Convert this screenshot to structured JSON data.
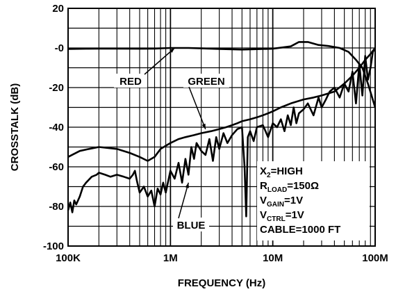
{
  "chart_data": {
    "type": "line",
    "xlabel": "FREQUENCY (Hz)",
    "ylabel": "CROSSTALK (dB)",
    "x_scale": "log",
    "xlim": [
      100000,
      100000000
    ],
    "ylim": [
      -100,
      20
    ],
    "grid": true,
    "x_tick_labels": [
      {
        "value": 100000,
        "label": "100K"
      },
      {
        "value": 1000000,
        "label": "1M"
      },
      {
        "value": 10000000,
        "label": "10M"
      },
      {
        "value": 100000000,
        "label": "100M"
      }
    ],
    "y_tick_labels": [
      {
        "value": 20,
        "label": "20"
      },
      {
        "value": 0,
        "label": "-0"
      },
      {
        "value": -20,
        "label": "-20"
      },
      {
        "value": -40,
        "label": "-40"
      },
      {
        "value": -60,
        "label": "-60"
      },
      {
        "value": -80,
        "label": "-80"
      },
      {
        "value": -100,
        "label": "-100"
      }
    ],
    "series": [
      {
        "name": "RED",
        "x": [
          100000,
          150000,
          200000,
          300000,
          500000,
          700000,
          1000000,
          1500000,
          2000000,
          3000000,
          5000000,
          7000000,
          10000000,
          15000000,
          18000000,
          22000000,
          28000000,
          35000000,
          45000000,
          55000000,
          65000000,
          75000000,
          85000000,
          100000000
        ],
        "y": [
          -0.5,
          -0.4,
          -0.3,
          -0.3,
          -0.4,
          -0.3,
          0,
          0,
          -0.2,
          -0.5,
          -0.8,
          -0.6,
          -0.4,
          0.8,
          3,
          3,
          1.5,
          1,
          0,
          -2,
          -6,
          -10,
          -18,
          -30
        ]
      },
      {
        "name": "GREEN",
        "x": [
          100000,
          130000,
          160000,
          200000,
          300000,
          400000,
          500000,
          600000,
          700000,
          800000,
          1000000,
          1200000,
          1400000,
          1700000,
          2000000,
          2500000,
          3000000,
          3500000,
          4000000,
          4500000,
          5000000,
          6000000,
          7000000,
          8000000,
          9000000,
          10000000,
          12000000,
          15000000,
          20000000,
          25000000,
          30000000,
          40000000,
          50000000,
          60000000,
          70000000,
          80000000,
          90000000,
          100000000
        ],
        "y": [
          -55,
          -52,
          -51,
          -50,
          -51,
          -53,
          -55,
          -57,
          -55,
          -51,
          -48,
          -46,
          -45,
          -44,
          -43,
          -42,
          -41,
          -40,
          -39,
          -38,
          -37,
          -36,
          -35,
          -34,
          -33,
          -32,
          -30,
          -28,
          -26,
          -25,
          -24,
          -22,
          -18,
          -14,
          -10,
          -6,
          -3,
          0
        ]
      },
      {
        "name": "BLUE",
        "x": [
          100000,
          105000,
          110000,
          115000,
          120000,
          130000,
          140000,
          150000,
          170000,
          190000,
          200000,
          230000,
          260000,
          300000,
          350000,
          400000,
          430000,
          450000,
          470000,
          500000,
          550000,
          600000,
          650000,
          700000,
          750000,
          800000,
          850000,
          900000,
          1000000,
          1100000,
          1200000,
          1300000,
          1400000,
          1500000,
          1600000,
          1700000,
          1800000,
          2000000,
          2200000,
          2400000,
          2600000,
          2800000,
          3000000,
          3300000,
          3600000,
          4000000,
          4500000,
          5000000,
          5300000,
          5500000,
          5700000,
          6000000,
          6500000,
          7000000,
          8000000,
          9000000,
          10000000,
          11000000,
          12000000,
          13000000,
          14000000,
          15000000,
          16000000,
          17000000,
          18000000,
          20000000,
          22000000,
          25000000,
          28000000,
          30000000,
          33000000,
          36000000,
          40000000,
          45000000,
          50000000,
          55000000,
          60000000,
          65000000,
          70000000,
          75000000,
          80000000,
          85000000,
          90000000,
          95000000,
          100000000
        ],
        "y": [
          -82,
          -78,
          -83,
          -77,
          -79,
          -75,
          -70,
          -68,
          -65,
          -64,
          -63,
          -64,
          -65,
          -64,
          -65,
          -66,
          -64,
          -62,
          -67,
          -73,
          -70,
          -75,
          -72,
          -80,
          -71,
          -74,
          -68,
          -73,
          -62,
          -66,
          -58,
          -68,
          -56,
          -64,
          -50,
          -56,
          -48,
          -52,
          -54,
          -46,
          -57,
          -45,
          -51,
          -43,
          -48,
          -44,
          -41,
          -40,
          -60,
          -85,
          -45,
          -42,
          -47,
          -40,
          -39,
          -45,
          -38,
          -40,
          -36,
          -42,
          -34,
          -39,
          -30,
          -38,
          -33,
          -31,
          -28,
          -34,
          -25,
          -30,
          -26,
          -22,
          -20,
          -25,
          -18,
          -22,
          -12,
          -28,
          -8,
          -24,
          -4,
          -16,
          -10,
          -2,
          0
        ]
      }
    ],
    "annotations": [
      {
        "text": "RED",
        "points_to": {
          "x": 1100000,
          "y": 0
        }
      },
      {
        "text": "GREEN",
        "points_to": {
          "x": 2200000,
          "y": -41
        }
      },
      {
        "text": "BLUE",
        "points_to": {
          "x": 1500000,
          "y": -68
        }
      }
    ],
    "conditions": [
      {
        "main": "X",
        "sub": "2",
        "rest": "=HIGH"
      },
      {
        "main": "R",
        "sub": "LOAD",
        "rest": "=150Ω"
      },
      {
        "main": "V",
        "sub": "GAIN",
        "rest": "=1V"
      },
      {
        "main": "V",
        "sub": "CTRL",
        "rest": "=1V"
      },
      {
        "main": "",
        "sub": "",
        "rest": "CABLE=1000 FT"
      }
    ]
  }
}
